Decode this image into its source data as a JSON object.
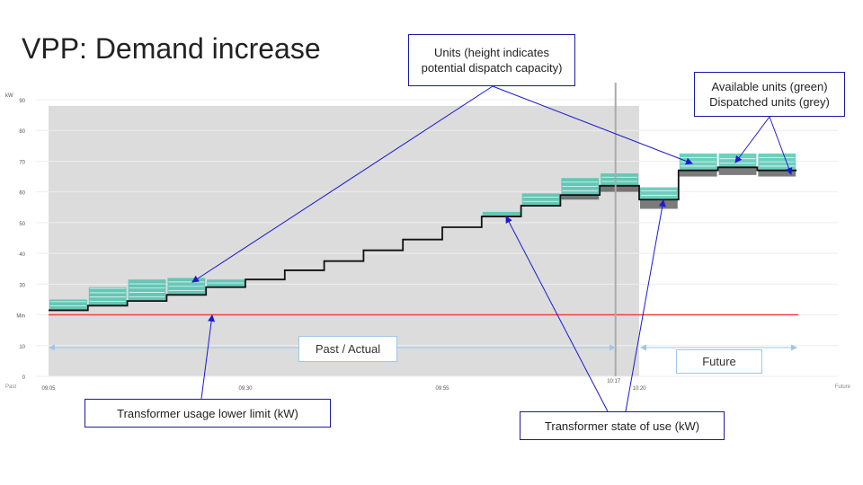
{
  "slide": {
    "title": "VPP: Demand increase"
  },
  "chart_data": {
    "type": "line",
    "ylabel": "kW",
    "ylim": [
      0,
      90
    ],
    "y_ticks": [
      {
        "value": 0,
        "label": "0"
      },
      {
        "value": 10,
        "label": "10"
      },
      {
        "value": 20,
        "label": "Min"
      },
      {
        "value": 30,
        "label": "30"
      },
      {
        "value": 40,
        "label": "40"
      },
      {
        "value": 50,
        "label": "50"
      },
      {
        "value": 60,
        "label": "60"
      },
      {
        "value": 70,
        "label": "70"
      },
      {
        "value": 80,
        "label": "80"
      },
      {
        "value": 90,
        "label": "90"
      }
    ],
    "x_ticks": [
      "09:05",
      "09:30",
      "09:55",
      "10:17",
      "10:20"
    ],
    "x_edge_labels": {
      "left": "Past",
      "right": "Future"
    },
    "lower_limit": 20,
    "state_of_use": [
      {
        "t": "09:05",
        "value": 21.5
      },
      {
        "t": "09:10",
        "value": 23
      },
      {
        "t": "09:15",
        "value": 24.5
      },
      {
        "t": "09:20",
        "value": 26.5
      },
      {
        "t": "09:25",
        "value": 29
      },
      {
        "t": "09:30",
        "value": 31.5
      },
      {
        "t": "09:35",
        "value": 34.5
      },
      {
        "t": "09:40",
        "value": 37.5
      },
      {
        "t": "09:45",
        "value": 41
      },
      {
        "t": "09:50",
        "value": 44.5
      },
      {
        "t": "09:55",
        "value": 48.5
      },
      {
        "t": "10:00",
        "value": 52
      },
      {
        "t": "10:05",
        "value": 55.5
      },
      {
        "t": "10:10",
        "value": 59
      },
      {
        "t": "10:15",
        "value": 62
      },
      {
        "t": "10:20",
        "value": 57.5
      },
      {
        "t": "10:25",
        "value": 67
      },
      {
        "t": "10:30",
        "value": 68
      },
      {
        "t": "10:35",
        "value": 67
      }
    ],
    "units_available": [
      {
        "t": "09:05",
        "from": 21.5,
        "to": 25
      },
      {
        "t": "09:10",
        "from": 23,
        "to": 29
      },
      {
        "t": "09:15",
        "from": 24.5,
        "to": 31.5
      },
      {
        "t": "09:20",
        "from": 26.5,
        "to": 32
      },
      {
        "t": "09:25",
        "from": 29,
        "to": 31.5
      },
      {
        "t": "10:00",
        "from": 52,
        "to": 53.5
      },
      {
        "t": "10:05",
        "from": 55.5,
        "to": 59.5
      },
      {
        "t": "10:10",
        "from": 59,
        "to": 64.5
      },
      {
        "t": "10:15",
        "from": 62,
        "to": 66
      },
      {
        "t": "10:20",
        "from": 57.5,
        "to": 61.5
      },
      {
        "t": "10:25",
        "from": 67,
        "to": 72.5
      },
      {
        "t": "10:30",
        "from": 68,
        "to": 72.5
      },
      {
        "t": "10:35",
        "from": 67,
        "to": 72.5
      }
    ],
    "units_dispatched": [
      {
        "t": "10:10",
        "from": 57.5,
        "to": 59
      },
      {
        "t": "10:15",
        "from": 60,
        "to": 62
      },
      {
        "t": "10:20",
        "from": 54.5,
        "to": 57.5
      },
      {
        "t": "10:25",
        "from": 65,
        "to": 67
      },
      {
        "t": "10:30",
        "from": 65.5,
        "to": 68
      },
      {
        "t": "10:35",
        "from": 65,
        "to": 67
      }
    ],
    "current_time": "10:17",
    "regions": {
      "past": "Past / Actual",
      "future": "Future"
    }
  },
  "colors": {
    "available_unit": "#3dbfa8",
    "dispatched_unit": "#5a5a5a",
    "state_line": "#111111",
    "limit_line": "#f04040",
    "past_region": "#dcdcdc",
    "callout_border": "#1a1aa0",
    "arrow": "#1a1ad0",
    "range_arrow": "#9ec6e8"
  },
  "callouts": {
    "units": "Units (height indicates potential dispatch capacity)",
    "available": "Available units (green) Dispatched units (grey)",
    "lower_limit": "Transformer usage lower limit (kW)",
    "state_of_use": "Transformer state of use (kW)"
  }
}
